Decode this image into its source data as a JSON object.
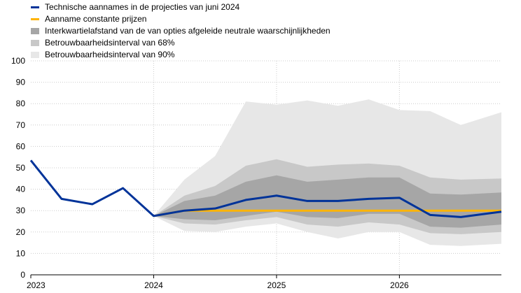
{
  "chart_data": {
    "type": "area",
    "title": "",
    "xlabel": "",
    "ylabel": "",
    "ylim": [
      0,
      100
    ],
    "yticks": [
      0,
      10,
      20,
      30,
      40,
      50,
      60,
      70,
      80,
      90,
      100
    ],
    "xlim": [
      2023.0,
      2026.83
    ],
    "xticks": [
      {
        "label": "2023",
        "value": 2023.0
      },
      {
        "label": "2024",
        "value": 2024.0
      },
      {
        "label": "2025",
        "value": 2025.0
      },
      {
        "label": "2026",
        "value": 2026.0
      }
    ],
    "grid": true,
    "legend_position": "top-left",
    "legend": [
      {
        "key": "projection",
        "label": "Technische aannames in de projecties van juni 2024",
        "style": "line",
        "color": "#003399"
      },
      {
        "key": "constant",
        "label": "Aanname constante prijzen",
        "style": "line",
        "color": "#ffb400"
      },
      {
        "key": "iqr",
        "label": "Interkwartielafstand van de van opties afgeleide neutrale waarschijnlijkheden",
        "style": "box",
        "color": "#a6a6a6"
      },
      {
        "key": "ci68",
        "label": "Betrouwbaarheidsinterval van 68%",
        "style": "box",
        "color": "#c8c8c8"
      },
      {
        "key": "ci90",
        "label": "Betrouwbaarheidsinterval van 90%",
        "style": "box",
        "color": "#e7e7e7"
      }
    ],
    "bands": {
      "x": [
        2024.0,
        2024.25,
        2024.5,
        2024.75,
        2025.0,
        2025.25,
        2025.5,
        2025.75,
        2026.0,
        2026.25,
        2026.5,
        2026.83
      ],
      "ci90": {
        "lower": [
          27.5,
          20.5,
          20.0,
          22.5,
          24.0,
          20.0,
          17.0,
          20.0,
          20.0,
          14.0,
          13.5,
          14.5
        ],
        "upper": [
          27.5,
          44.5,
          55.5,
          81.0,
          79.5,
          81.5,
          79.0,
          82.0,
          77.0,
          76.5,
          70.0,
          76.0
        ]
      },
      "ci68": {
        "lower": [
          27.5,
          24.0,
          23.5,
          25.5,
          27.0,
          23.5,
          22.5,
          24.5,
          23.5,
          19.5,
          19.0,
          20.0
        ],
        "upper": [
          27.5,
          37.0,
          41.5,
          51.0,
          54.0,
          50.5,
          51.5,
          52.0,
          51.0,
          45.5,
          44.5,
          45.0
        ]
      },
      "iqr": {
        "lower": [
          27.5,
          26.0,
          25.5,
          27.5,
          29.5,
          27.0,
          26.5,
          28.5,
          28.5,
          22.5,
          22.0,
          23.5
        ],
        "upper": [
          27.5,
          34.5,
          37.0,
          43.5,
          46.5,
          43.5,
          44.5,
          45.5,
          45.5,
          38.0,
          37.5,
          38.5
        ]
      }
    },
    "series": [
      {
        "key": "projection",
        "name": "Technische aannames in de projecties van juni 2024",
        "color": "#003399",
        "points": [
          [
            2023.0,
            53.5
          ],
          [
            2023.25,
            35.5
          ],
          [
            2023.5,
            33.0
          ],
          [
            2023.75,
            40.5
          ],
          [
            2024.0,
            27.5
          ],
          [
            2024.25,
            30.0
          ],
          [
            2024.5,
            31.0
          ],
          [
            2024.75,
            35.0
          ],
          [
            2025.0,
            37.0
          ],
          [
            2025.25,
            34.5
          ],
          [
            2025.5,
            34.5
          ],
          [
            2025.75,
            35.5
          ],
          [
            2026.0,
            36.0
          ],
          [
            2026.25,
            28.0
          ],
          [
            2026.5,
            27.0
          ],
          [
            2026.83,
            29.5
          ]
        ]
      },
      {
        "key": "constant",
        "name": "Aanname constante prijzen",
        "color": "#ffb400",
        "points": [
          [
            2024.0,
            27.5
          ],
          [
            2024.25,
            30.0
          ],
          [
            2026.83,
            30.0
          ]
        ]
      }
    ]
  }
}
